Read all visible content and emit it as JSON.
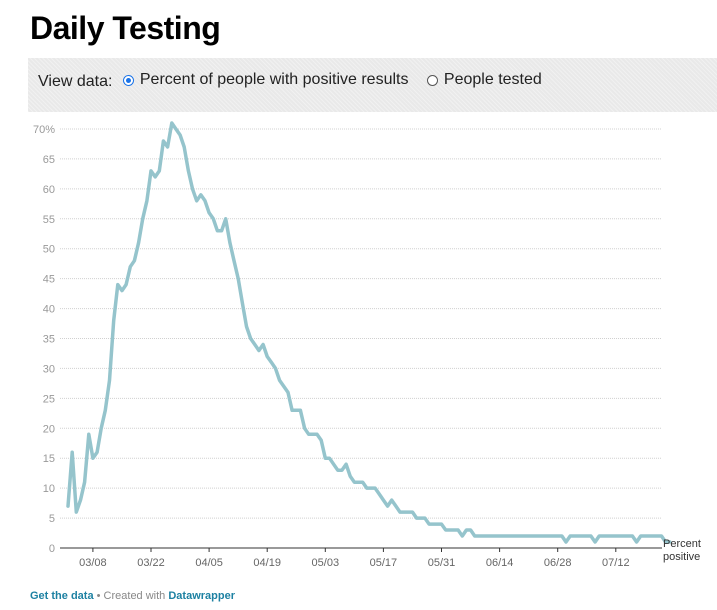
{
  "title": "Daily Testing",
  "controls": {
    "label": "View data:",
    "options": [
      {
        "label": "Percent of people with positive results",
        "selected": true
      },
      {
        "label": "People tested",
        "selected": false
      }
    ]
  },
  "footer": {
    "get_data": "Get the data",
    "separator": " • Created with ",
    "tool": "Datawrapper"
  },
  "colors": {
    "line": "#95c4cc",
    "grid": "#d0d0d0",
    "tick": "#999999",
    "axis": "#333333"
  },
  "chart_data": {
    "type": "line",
    "y_ticks": [
      0,
      5,
      10,
      15,
      20,
      25,
      30,
      35,
      40,
      45,
      50,
      55,
      60,
      65,
      70
    ],
    "y_tick_labels": [
      "0",
      "5",
      "10",
      "15",
      "20",
      "25",
      "30",
      "35",
      "40",
      "45",
      "50",
      "55",
      "60",
      "65",
      "70%"
    ],
    "ylim": [
      0,
      70
    ],
    "x_ticks": [
      "03/08",
      "03/22",
      "04/05",
      "04/19",
      "05/03",
      "05/17",
      "05/31",
      "06/14",
      "06/28",
      "07/12"
    ],
    "series_label": "Percent positive",
    "series_label_lines": [
      "Percent",
      "positive"
    ],
    "series": [
      {
        "name": "Percent positive",
        "start_date": "03/02",
        "values": [
          7,
          16,
          6,
          8,
          11,
          19,
          15,
          16,
          20,
          23,
          28,
          38,
          44,
          43,
          44,
          47,
          48,
          51,
          55,
          58,
          63,
          62,
          63,
          68,
          67,
          71,
          70,
          69,
          67,
          63,
          60,
          58,
          59,
          58,
          56,
          55,
          53,
          53,
          55,
          51,
          48,
          45,
          41,
          37,
          35,
          34,
          33,
          34,
          32,
          31,
          30,
          28,
          27,
          26,
          23,
          23,
          23,
          20,
          19,
          19,
          19,
          18,
          15,
          15,
          14,
          13,
          13,
          14,
          12,
          11,
          11,
          11,
          10,
          10,
          10,
          9,
          8,
          7,
          8,
          7,
          6,
          6,
          6,
          6,
          5,
          5,
          5,
          4,
          4,
          4,
          4,
          3,
          3,
          3,
          3,
          2,
          3,
          3,
          2,
          2,
          2,
          2,
          2,
          2,
          2,
          2,
          2,
          2,
          2,
          2,
          2,
          2,
          2,
          2,
          2,
          2,
          2,
          2,
          2,
          2,
          1,
          2,
          2,
          2,
          2,
          2,
          2,
          1,
          2,
          2,
          2,
          2,
          2,
          2,
          2,
          2,
          2,
          1,
          2,
          2,
          2,
          2,
          2,
          2,
          1,
          1
        ]
      }
    ]
  }
}
